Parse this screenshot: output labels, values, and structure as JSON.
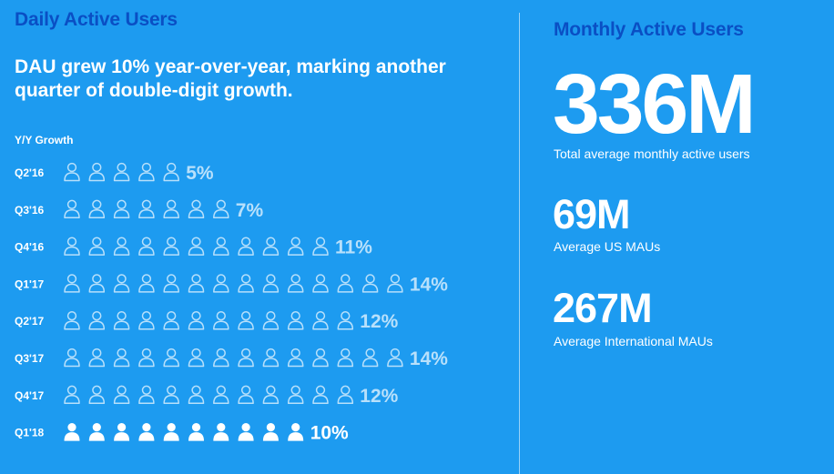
{
  "dau": {
    "title": "Daily Active Users",
    "headline": "DAU grew 10% year-over-year, marking another quarter of double-digit growth.",
    "yoy_label": "Y/Y Growth"
  },
  "chart_data": {
    "type": "bar",
    "ylabel": "Y/Y Growth",
    "categories": [
      "Q2'16",
      "Q3'16",
      "Q4'16",
      "Q1'17",
      "Q2'17",
      "Q3'17",
      "Q4'17",
      "Q1'18"
    ],
    "values": [
      5,
      7,
      11,
      14,
      12,
      14,
      12,
      10
    ],
    "value_labels": [
      "5%",
      "7%",
      "11%",
      "14%",
      "12%",
      "14%",
      "12%",
      "10%"
    ],
    "highlight_category": "Q1'18",
    "icon": "person-icon",
    "colors": {
      "muted": "#b8e0fb",
      "highlight": "#ffffff"
    }
  },
  "mau": {
    "title": "Monthly Active Users",
    "total": "336M",
    "total_label": "Total average monthly active users",
    "us": "69M",
    "us_label": "Average US MAUs",
    "intl": "267M",
    "intl_label": "Average International MAUs"
  },
  "colors": {
    "background": "#1d9bf0",
    "title_blue": "#0a4fc4",
    "text": "#ffffff"
  }
}
